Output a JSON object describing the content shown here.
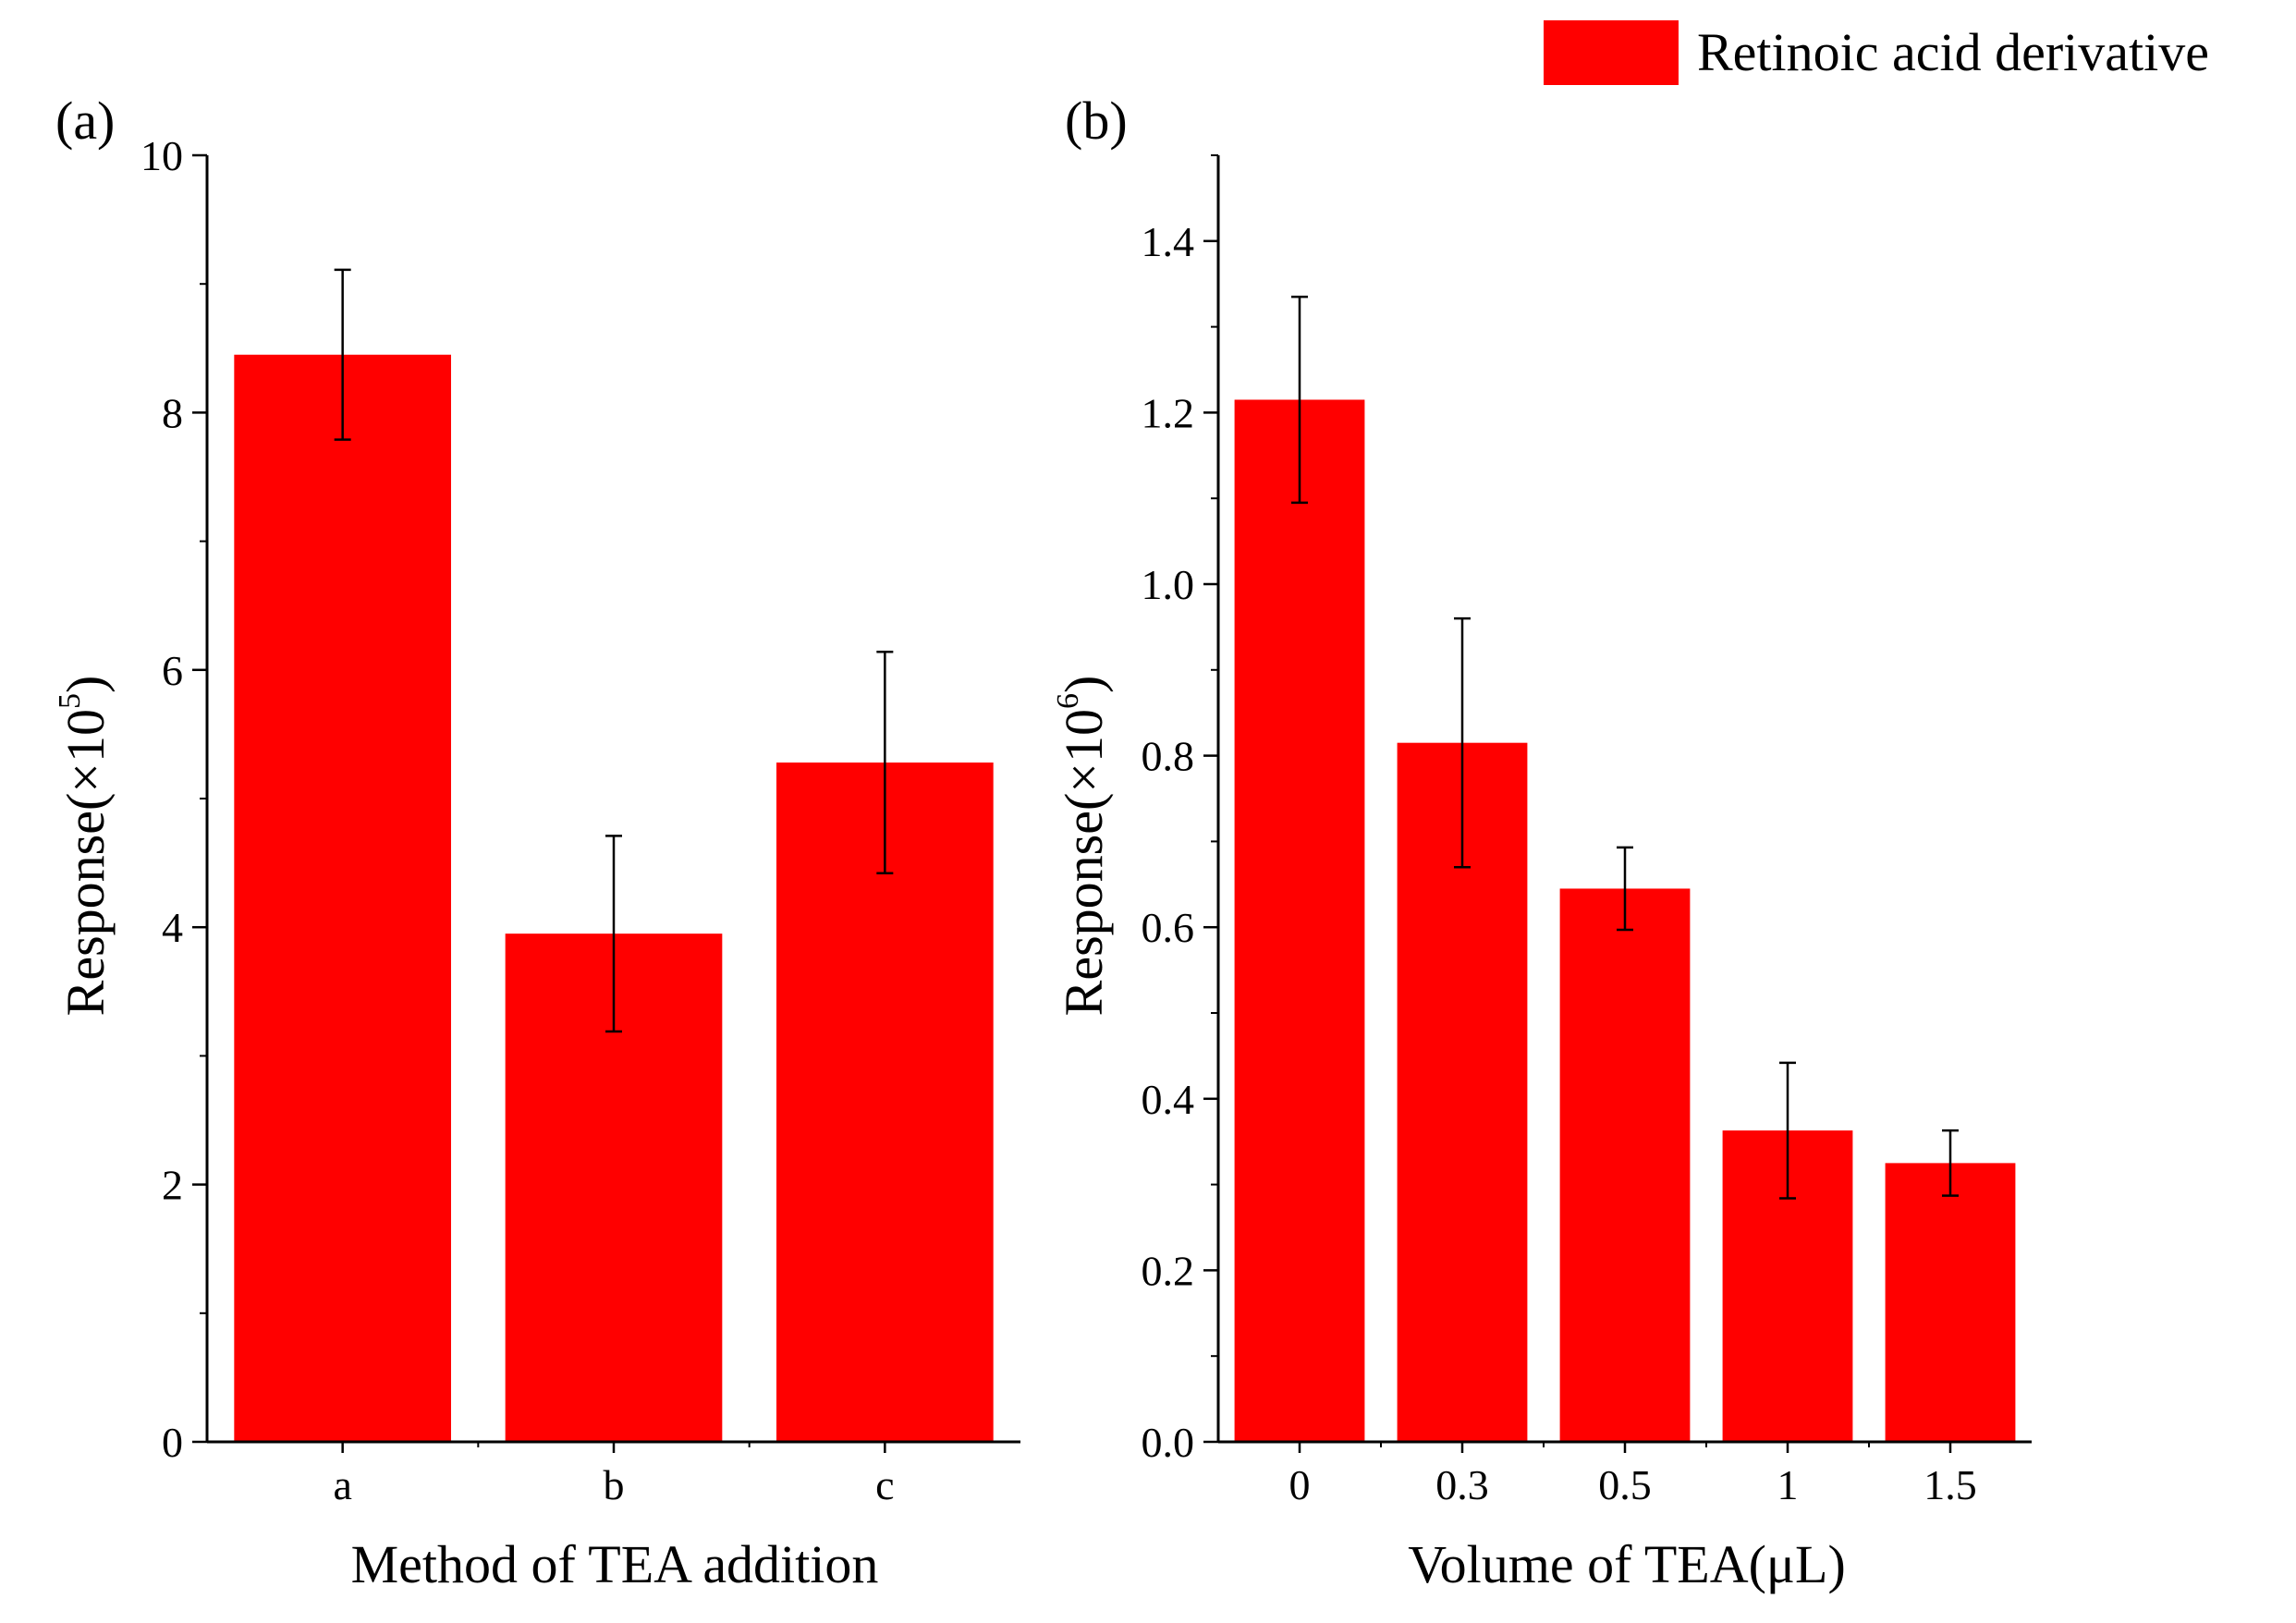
{
  "legend": {
    "label": "Retinoic acid derivative",
    "color": "#ff0000"
  },
  "chart_data": [
    {
      "type": "bar",
      "panel_label": "(a)",
      "title": "",
      "xlabel": "Method of TEA addition",
      "ylabel_main": "Response(×10",
      "ylabel_exp": "5",
      "ylabel_close": ")",
      "categories": [
        "a",
        "b",
        "c"
      ],
      "values": [
        8.45,
        3.95,
        5.28
      ],
      "errors": [
        0.66,
        0.76,
        0.86
      ],
      "ylim": [
        0,
        10
      ],
      "yticks": [
        0,
        2,
        4,
        6,
        8,
        10
      ],
      "ytick_labels": [
        "0",
        "2",
        "4",
        "6",
        "8",
        "10"
      ],
      "color": "#ff0000",
      "grid": false,
      "legend_position": "top-right"
    },
    {
      "type": "bar",
      "panel_label": "(b)",
      "title": "",
      "xlabel": "Volume of  TEA(μL)",
      "ylabel_main": "Response(×10",
      "ylabel_exp": "6",
      "ylabel_close": ")",
      "categories": [
        "0",
        "0.3",
        "0.5",
        "1",
        "1.5"
      ],
      "values": [
        1.215,
        0.815,
        0.645,
        0.363,
        0.325
      ],
      "errors": [
        0.12,
        0.145,
        0.048,
        0.079,
        0.038
      ],
      "ylim": [
        0,
        1.5
      ],
      "yticks": [
        0,
        0.2,
        0.4,
        0.6,
        0.8,
        1.0,
        1.2,
        1.4
      ],
      "ytick_labels": [
        "0.0",
        "0.2",
        "0.4",
        "0.6",
        "0.8",
        "1.0",
        "1.2",
        "1.4"
      ],
      "color": "#ff0000",
      "grid": false,
      "legend_position": "top-right"
    }
  ]
}
